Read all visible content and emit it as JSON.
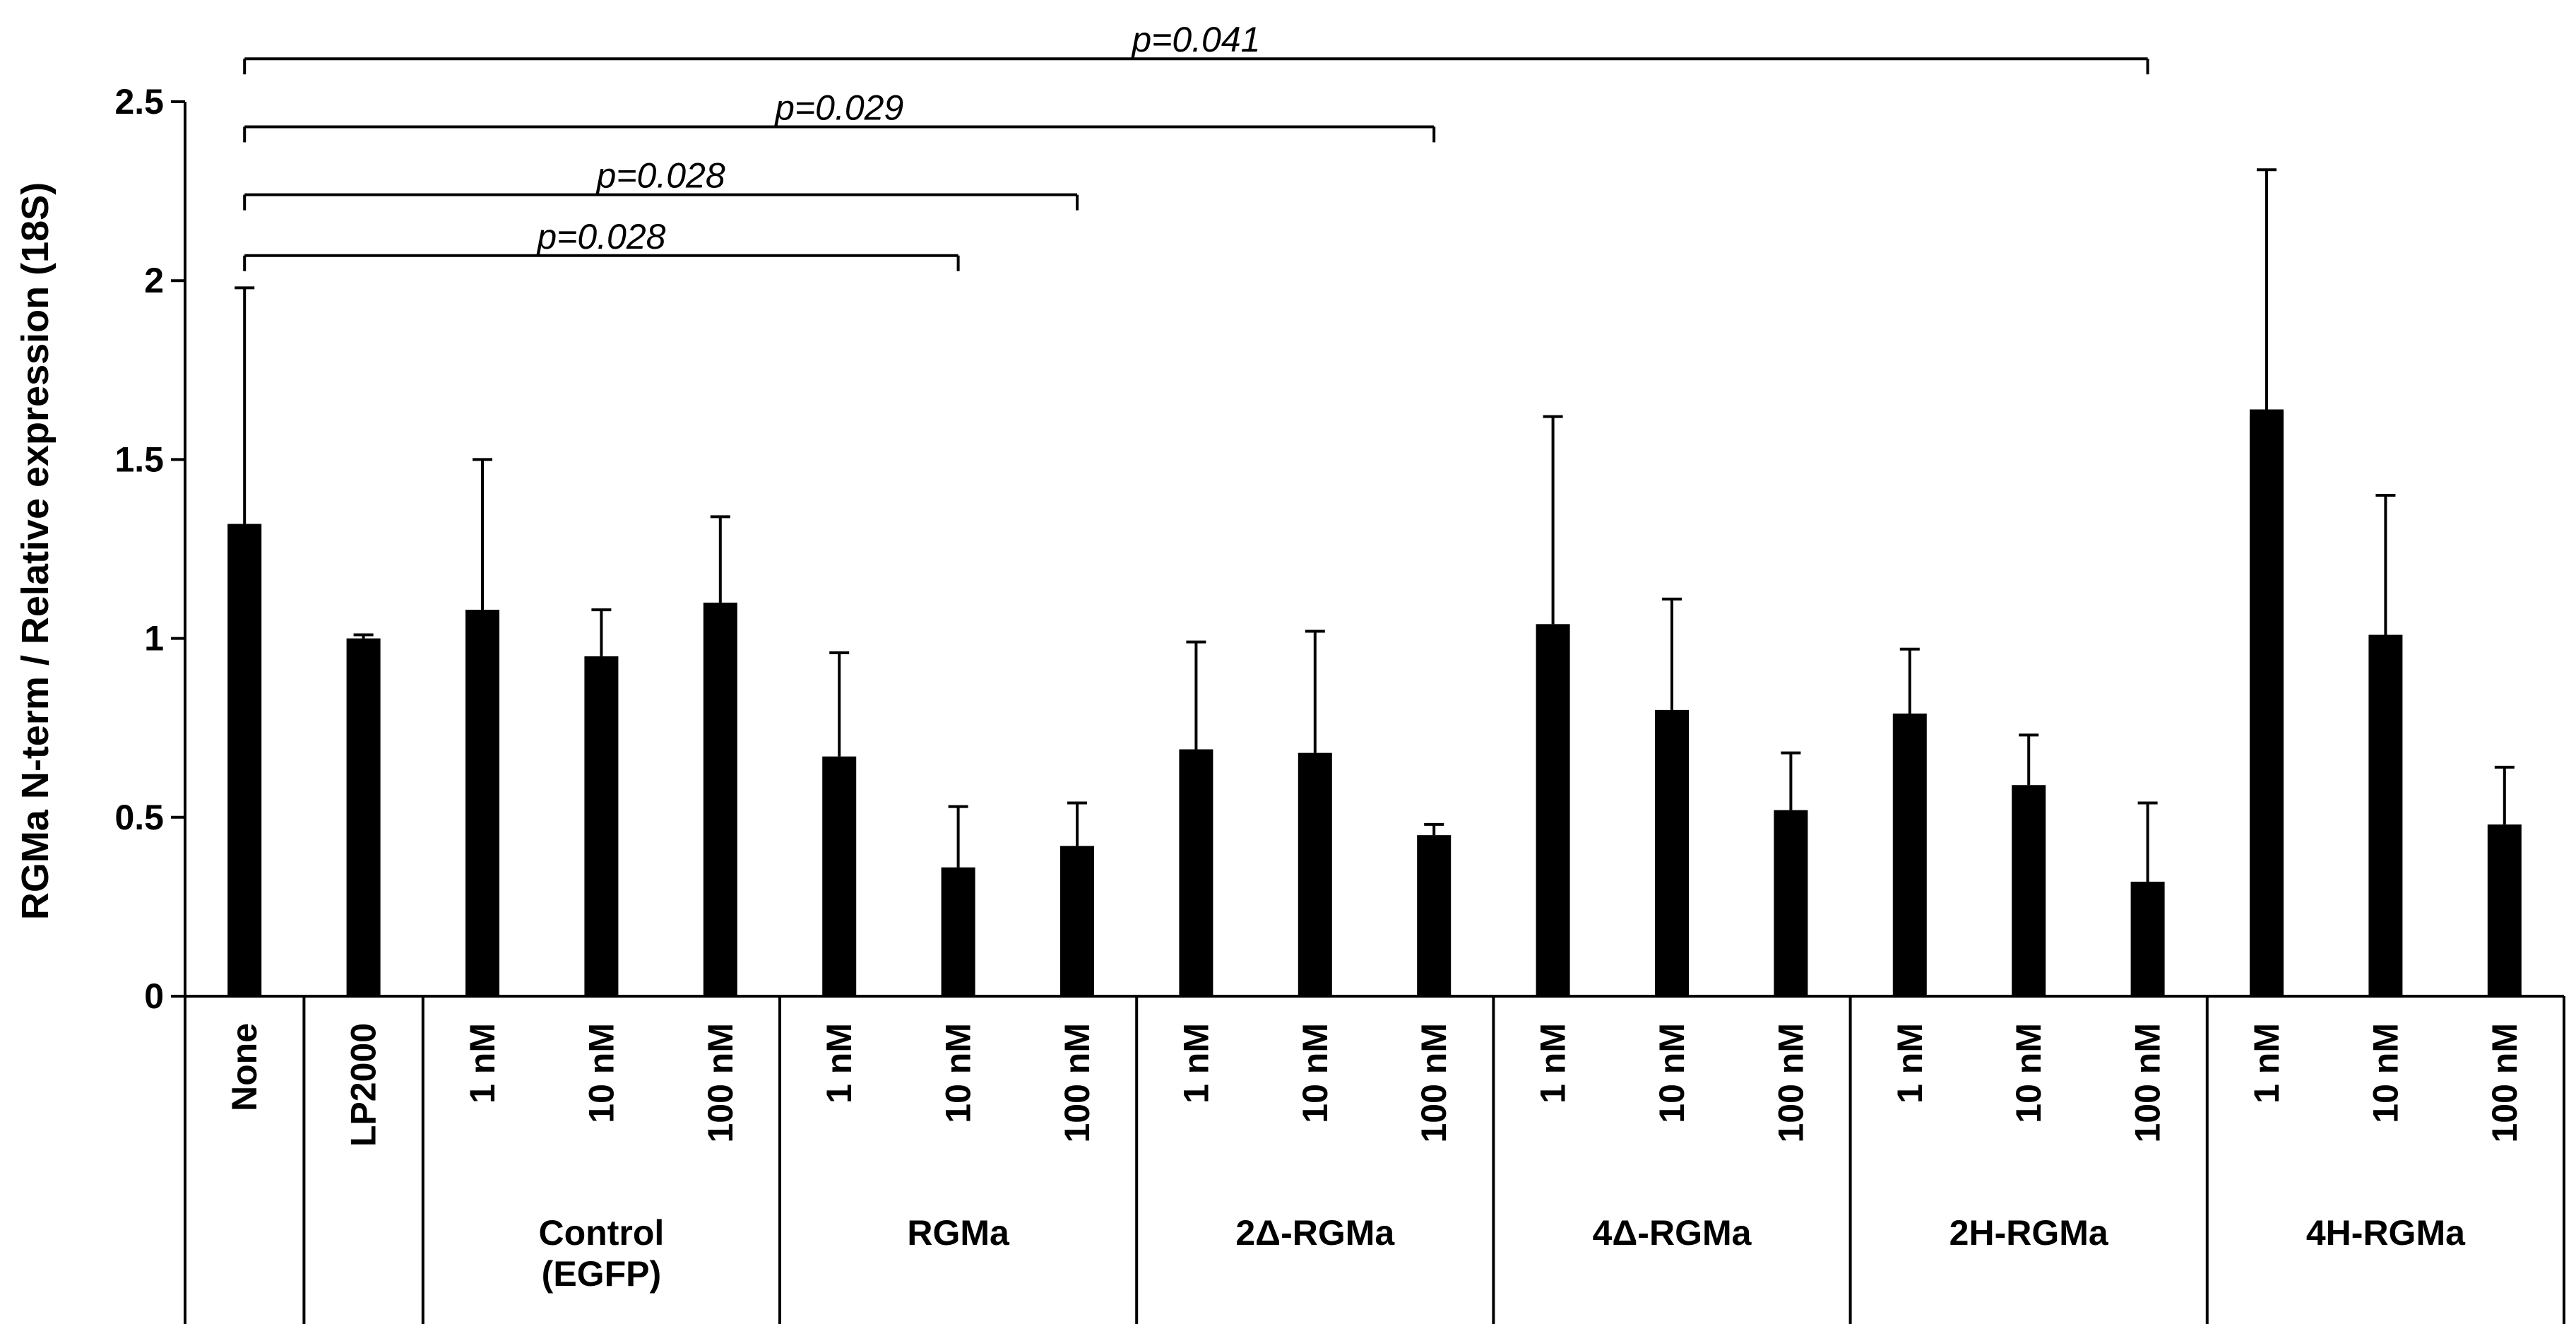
{
  "chart_data": {
    "type": "bar",
    "ylabel": "RGMa N-term / Relative expression (18S)",
    "ylim": [
      0,
      2.5
    ],
    "yticks": [
      0,
      0.5,
      1,
      1.5,
      2,
      2.5
    ],
    "ytick_labels": [
      "0",
      "0.5",
      "1",
      "1.5",
      "2",
      "2.5"
    ],
    "categories": [
      "None",
      "LP2000",
      "1 nM",
      "10 nM",
      "100 nM",
      "1 nM",
      "10 nM",
      "100 nM",
      "1 nM",
      "10 nM",
      "100 nM",
      "1 nM",
      "10 nM",
      "100 nM",
      "1 nM",
      "10 nM",
      "100 nM",
      "1 nM",
      "10 nM",
      "100 nM"
    ],
    "values": [
      1.32,
      1.0,
      1.08,
      0.95,
      1.1,
      0.67,
      0.36,
      0.42,
      0.69,
      0.68,
      0.45,
      1.04,
      0.8,
      0.52,
      0.79,
      0.59,
      0.32,
      1.64,
      1.01,
      0.48
    ],
    "errors": [
      0.66,
      0.01,
      0.42,
      0.13,
      0.24,
      0.29,
      0.17,
      0.12,
      0.3,
      0.34,
      0.03,
      0.58,
      0.31,
      0.16,
      0.18,
      0.14,
      0.22,
      0.67,
      0.39,
      0.16
    ],
    "groups": [
      {
        "label": "",
        "start": 0,
        "end": 0
      },
      {
        "label": "",
        "start": 1,
        "end": 1
      },
      {
        "label": "Control\n(EGFP)",
        "start": 2,
        "end": 4
      },
      {
        "label": "RGMa",
        "start": 5,
        "end": 7
      },
      {
        "label": "2Δ-RGMa",
        "start": 8,
        "end": 10
      },
      {
        "label": "4Δ-RGMa",
        "start": 11,
        "end": 13
      },
      {
        "label": "2H-RGMa",
        "start": 14,
        "end": 16
      },
      {
        "label": "4H-RGMa",
        "start": 17,
        "end": 19
      }
    ],
    "significance": [
      {
        "from": 0,
        "to": 16,
        "level": 2.62,
        "label": "p=0.041"
      },
      {
        "from": 0,
        "to": 10,
        "level": 2.43,
        "label": "p=0.029"
      },
      {
        "from": 0,
        "to": 7,
        "level": 2.24,
        "label": "p=0.028"
      },
      {
        "from": 0,
        "to": 6,
        "level": 2.07,
        "label": "p=0.028"
      }
    ]
  },
  "colors": {
    "bar": "#000000",
    "axis": "#000000",
    "background": "#ffffff"
  }
}
